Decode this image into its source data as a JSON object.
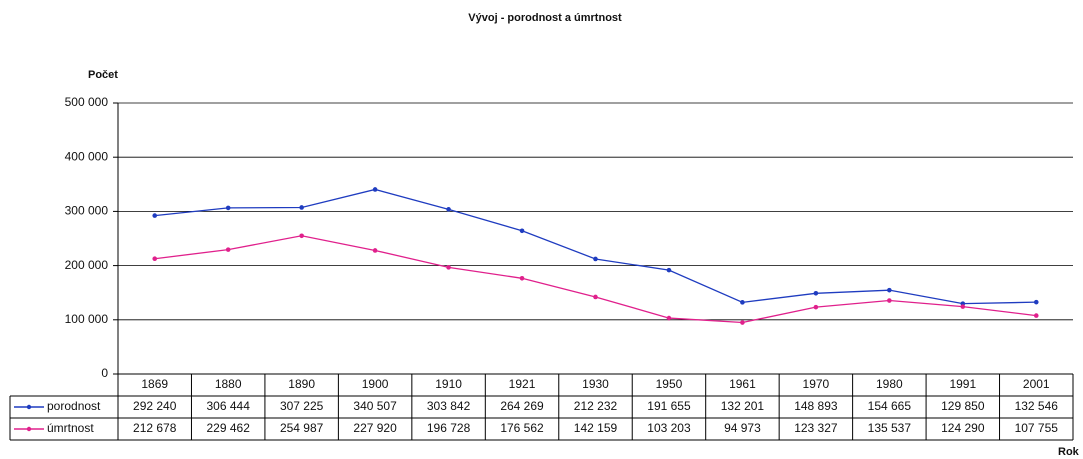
{
  "chart_data": {
    "type": "line",
    "title": "Vývoj  - porodnost a úmrtnost",
    "y_label": "Počet",
    "x_label": "Rok",
    "categories": [
      "1869",
      "1880",
      "1890",
      "1900",
      "1910",
      "1921",
      "1930",
      "1950",
      "1961",
      "1970",
      "1980",
      "1991",
      "2001"
    ],
    "series": [
      {
        "name": "porodnost",
        "color": "#1f3cc0",
        "values": [
          292240,
          306444,
          307225,
          340507,
          303842,
          264269,
          212232,
          191655,
          132201,
          148893,
          154665,
          129850,
          132546
        ],
        "value_labels": [
          "292 240",
          "306 444",
          "307 225",
          "340 507",
          "303 842",
          "264 269",
          "212 232",
          "191 655",
          "132 201",
          "148 893",
          "154 665",
          "129 850",
          "132 546"
        ]
      },
      {
        "name": "úmrtnost",
        "color": "#e0208c",
        "values": [
          212678,
          229462,
          254987,
          227920,
          196728,
          176562,
          142159,
          103203,
          94973,
          123327,
          135537,
          124290,
          107755
        ],
        "value_labels": [
          "212 678",
          "229 462",
          "254 987",
          "227 920",
          "196 728",
          "176 562",
          "142 159",
          "103 203",
          "94 973",
          "123 327",
          "135 537",
          "124 290",
          "107 755"
        ]
      }
    ],
    "ylim": [
      0,
      500000
    ],
    "yticks": [
      0,
      {
        "value": 100000,
        "label": "100 000"
      },
      {
        "value": 200000,
        "label": "200 000"
      },
      {
        "value": 300000,
        "label": "300 000"
      },
      {
        "value": 400000,
        "label": "400 000"
      },
      {
        "value": 500000,
        "label": "500 000"
      }
    ],
    "grid": true
  }
}
